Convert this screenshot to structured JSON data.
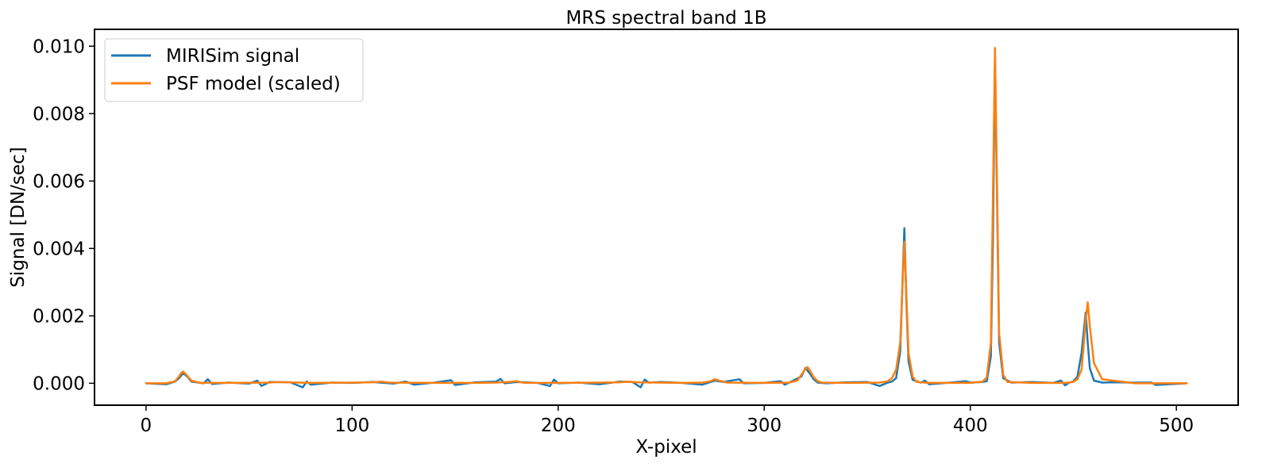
{
  "chart_data": {
    "type": "line",
    "title": "MRS spectral band 1B",
    "xlabel": "X-pixel",
    "ylabel": "Signal [DN/sec]",
    "xlim": [
      -25,
      530
    ],
    "ylim": [
      -0.00065,
      0.0105
    ],
    "xticks": [
      0,
      100,
      200,
      300,
      400,
      500
    ],
    "xtick_labels": [
      "0",
      "100",
      "200",
      "300",
      "400",
      "500"
    ],
    "yticks": [
      0.0,
      0.002,
      0.004,
      0.006,
      0.008,
      0.01
    ],
    "ytick_labels": [
      "0.000",
      "0.002",
      "0.004",
      "0.006",
      "0.008",
      "0.010"
    ],
    "grid": false,
    "legend_position": "top-left",
    "series": [
      {
        "name": "MIRISim signal",
        "color": "#1f77b4",
        "x": [
          0,
          10,
          14,
          16,
          18,
          20,
          22,
          28,
          30,
          32,
          40,
          50,
          54,
          56,
          60,
          70,
          76,
          78,
          80,
          90,
          100,
          110,
          120,
          126,
          130,
          140,
          148,
          150,
          160,
          170,
          172,
          174,
          180,
          190,
          196,
          198,
          200,
          210,
          220,
          230,
          236,
          240,
          242,
          244,
          250,
          260,
          270,
          276,
          280,
          288,
          290,
          300,
          308,
          310,
          314,
          318,
          320,
          322,
          324,
          326,
          330,
          340,
          350,
          356,
          360,
          362,
          364,
          366,
          367,
          368,
          369,
          370,
          372,
          376,
          378,
          380,
          390,
          398,
          400,
          406,
          408,
          410,
          411,
          412,
          413,
          414,
          416,
          420,
          430,
          440,
          444,
          446,
          448,
          450,
          452,
          454,
          455,
          456,
          457,
          458,
          460,
          464,
          470,
          480,
          488,
          490,
          505
        ],
        "y": [
          0.0,
          -3e-05,
          5e-05,
          0.00015,
          0.0003,
          0.0002,
          5e-05,
          0.0,
          0.00012,
          -2e-05,
          2e-05,
          -1e-05,
          8e-05,
          -8e-05,
          4e-05,
          3e-05,
          -0.00012,
          5e-05,
          -4e-05,
          2e-05,
          1e-05,
          4e-05,
          -1e-05,
          5e-05,
          -4e-05,
          2e-05,
          9e-05,
          -5e-05,
          3e-05,
          5e-05,
          0.00013,
          0.0,
          4e-05,
          1e-05,
          -8e-05,
          0.00011,
          0.0,
          2e-05,
          -3e-05,
          5e-05,
          4e-05,
          -0.00012,
          0.00011,
          2e-05,
          4e-05,
          1e-05,
          -4e-05,
          8e-05,
          4e-05,
          0.00012,
          0.0,
          1e-05,
          6e-05,
          -4e-05,
          8e-05,
          0.0002,
          0.00045,
          0.0003,
          0.00012,
          2e-05,
          0.0,
          3e-05,
          4e-05,
          -8e-05,
          2e-05,
          5e-05,
          0.00015,
          0.00095,
          0.0028,
          0.0046,
          0.0024,
          0.00065,
          0.0001,
          2e-05,
          8e-05,
          -3e-05,
          2e-05,
          6e-05,
          2e-05,
          4e-05,
          6e-05,
          0.0008,
          0.0042,
          0.0097,
          0.0055,
          0.0012,
          0.00015,
          2e-05,
          4e-05,
          1e-05,
          8e-05,
          -6e-05,
          2e-05,
          5e-05,
          0.0002,
          0.0009,
          0.0015,
          0.0021,
          0.0012,
          0.00045,
          8e-05,
          2e-05,
          3e-05,
          2e-05,
          2e-05,
          -5e-05,
          0.0
        ]
      },
      {
        "name": "PSF model (scaled)",
        "color": "#ff7f0e",
        "x": [
          0,
          10,
          14,
          16,
          17,
          18,
          20,
          22,
          26,
          40,
          60,
          64,
          68,
          80,
          100,
          110,
          114,
          118,
          140,
          160,
          170,
          176,
          180,
          182,
          184,
          200,
          220,
          230,
          234,
          238,
          260,
          270,
          274,
          276,
          278,
          282,
          300,
          312,
          316,
          318,
          320,
          321,
          322,
          324,
          326,
          328,
          340,
          356,
          360,
          362,
          364,
          366,
          367,
          368,
          369,
          370,
          372,
          374,
          380,
          400,
          406,
          408,
          410,
          411,
          412,
          413,
          414,
          416,
          418,
          430,
          446,
          450,
          452,
          454,
          455,
          456,
          457,
          458,
          460,
          464,
          480,
          505
        ],
        "y": [
          0.0,
          0.0,
          6e-05,
          0.0002,
          0.0003,
          0.00035,
          0.00022,
          8e-05,
          1e-05,
          1e-05,
          2e-05,
          4e-05,
          3e-05,
          1e-05,
          2e-05,
          3e-05,
          5e-05,
          2e-05,
          1e-05,
          1e-05,
          2e-05,
          4e-05,
          6e-05,
          3e-05,
          1e-05,
          1e-05,
          2e-05,
          3e-05,
          5e-05,
          3e-05,
          1e-05,
          2e-05,
          6e-05,
          0.00012,
          8e-05,
          2e-05,
          1e-05,
          2e-05,
          8e-05,
          0.00025,
          0.00042,
          0.00048,
          0.0004,
          0.00018,
          6e-05,
          2e-05,
          1e-05,
          2e-05,
          6e-05,
          0.00015,
          0.0004,
          0.0012,
          0.0028,
          0.0042,
          0.0026,
          0.0009,
          0.0002,
          4e-05,
          1e-05,
          1e-05,
          5e-05,
          0.00018,
          0.0012,
          0.0055,
          0.00995,
          0.0058,
          0.0015,
          0.00025,
          4e-05,
          1e-05,
          1e-05,
          4e-05,
          0.00012,
          0.0004,
          0.0011,
          0.0019,
          0.0024,
          0.0017,
          0.0006,
          0.00012,
          0.0,
          0.0
        ]
      }
    ]
  }
}
